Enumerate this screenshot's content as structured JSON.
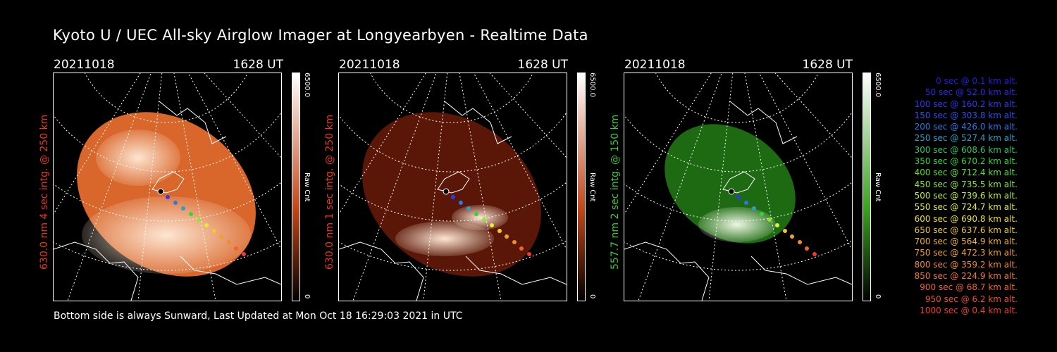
{
  "title": "Kyoto U / UEC All-sky Airglow Imager at Longyearbyen - Realtime Data",
  "footer": "Bottom side is always Sunward, Last Updated at Mon Oct 18 16:29:03 2021 in UTC",
  "panels": [
    {
      "date": "20211018",
      "time": "1628 UT",
      "ylabel": "630.0 nm 4 sec intg. @ 250 km",
      "label_color": "#e53a1a",
      "cbar_max": "6500.0",
      "cbar_min": "0",
      "cbar_label": "Raw Cnt",
      "colors": {
        "bg": "#d9662a",
        "bright": "#fde6d2",
        "cbar_top": "#ffffff",
        "cbar_bottom": "#000000",
        "cbar_mid": "#c0461a"
      }
    },
    {
      "date": "20211018",
      "time": "1628 UT",
      "ylabel": "630.0 nm 1 sec intg. @ 250 km",
      "label_color": "#e53a1a",
      "cbar_max": "6500.0",
      "cbar_min": "0",
      "cbar_label": "Raw Cnt",
      "colors": {
        "bg": "#5a1708",
        "bright": "#fde6d2",
        "cbar_top": "#ffffff",
        "cbar_bottom": "#000000",
        "cbar_mid": "#c0461a"
      }
    },
    {
      "date": "20211018",
      "time": "1628 UT",
      "ylabel": "557.7 nm 2 sec intg. @ 150 km",
      "label_color": "#3cc83c",
      "cbar_max": "6500.0",
      "cbar_min": "0",
      "cbar_label": "Raw Cnt",
      "colors": {
        "bg": "#1d6a12",
        "bright": "#eef8e2",
        "cbar_top": "#ffffff",
        "cbar_bottom": "#000000",
        "cbar_mid": "#3aa020"
      }
    }
  ],
  "legend": [
    {
      "text": "0 sec @    0.1 km alt.",
      "color": "#1f1fe0"
    },
    {
      "text": "50 sec @   52.0 km alt.",
      "color": "#2a2ae8"
    },
    {
      "text": "100 sec @  160.2 km alt.",
      "color": "#2a3af0"
    },
    {
      "text": "150 sec @  303.8 km alt.",
      "color": "#2a50f0"
    },
    {
      "text": "200 sec @  426.0 km alt.",
      "color": "#2a78e8"
    },
    {
      "text": "250 sec @  527.4 km alt.",
      "color": "#2aa0c8"
    },
    {
      "text": "300 sec @  608.6 km alt.",
      "color": "#2ac86a"
    },
    {
      "text": "350 sec @  670.2 km alt.",
      "color": "#30d830"
    },
    {
      "text": "400 sec @  712.4 km alt.",
      "color": "#5ae030"
    },
    {
      "text": "450 sec @  735.5 km alt.",
      "color": "#8ae830"
    },
    {
      "text": "500 sec @  739.6 km alt.",
      "color": "#b8f030"
    },
    {
      "text": "550 sec @  724.7 km alt.",
      "color": "#e0f030"
    },
    {
      "text": "600 sec @  690.8 km alt.",
      "color": "#f0e030"
    },
    {
      "text": "650 sec @  637.6 km alt.",
      "color": "#f0c830"
    },
    {
      "text": "700 sec @  564.9 km alt.",
      "color": "#f0b030"
    },
    {
      "text": "750 sec @  472.3 km alt.",
      "color": "#f0a030"
    },
    {
      "text": "800 sec @  359.2 km alt.",
      "color": "#f08c30"
    },
    {
      "text": "850 sec @  224.9 km alt.",
      "color": "#f07830"
    },
    {
      "text": "900 sec @   68.7 km alt.",
      "color": "#f06430"
    },
    {
      "text": "950 sec @    6.2 km alt.",
      "color": "#f05030"
    },
    {
      "text": "1000 sec @    0.4 km alt.",
      "color": "#f03c30"
    }
  ]
}
